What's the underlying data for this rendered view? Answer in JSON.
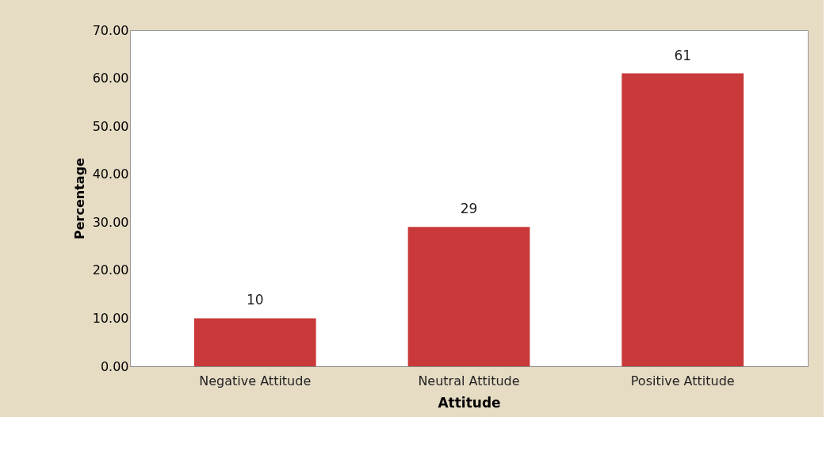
{
  "chart_data": {
    "type": "bar",
    "xlabel": "Attitude",
    "ylabel": "Percentage",
    "categories": [
      "Negative Attitude",
      "Neutral Attitude",
      "Positive Attitude"
    ],
    "values": [
      10,
      29,
      61
    ],
    "color": "#c9393a",
    "ylim": [
      0,
      70
    ],
    "yticks": [
      {
        "value": 0,
        "label": "0.00"
      },
      {
        "value": 10,
        "label": "10.00"
      },
      {
        "value": 20,
        "label": "20.00"
      },
      {
        "value": 30,
        "label": "30.00"
      },
      {
        "value": 40,
        "label": "40.00"
      },
      {
        "value": 50,
        "label": "50.00"
      },
      {
        "value": 60,
        "label": "60.00"
      },
      {
        "value": 70,
        "label": "70.00"
      }
    ],
    "data_labels": true,
    "grid": false
  }
}
